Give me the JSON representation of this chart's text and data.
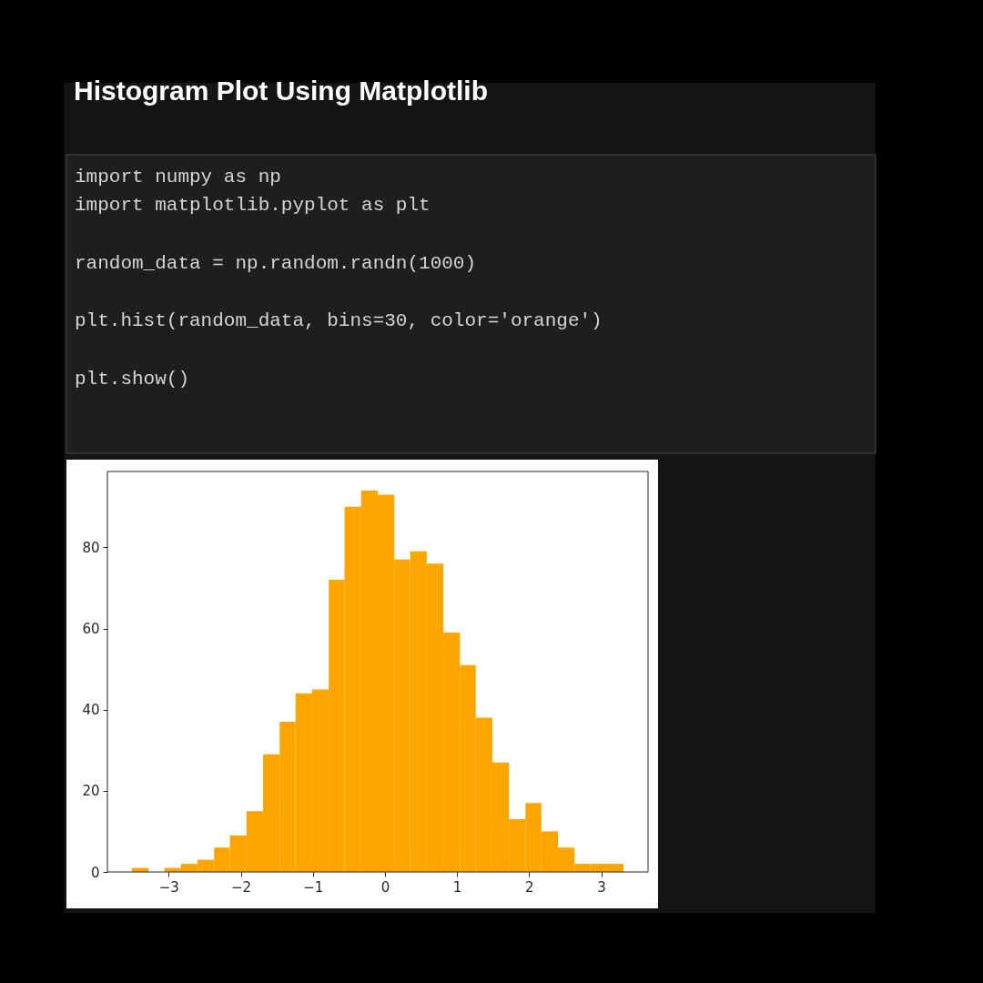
{
  "chart_data": {
    "type": "histogram",
    "title": "Histogram Plot Using Matplotlib",
    "annotations": [
      "import numpy as np",
      "import matplotlib.pyplot as plt",
      "random_data = np.random.randn(1000)",
      "plt.hist(random_data, bins=30, color='orange')",
      "plt.show()"
    ],
    "bins": [
      -3.51,
      -3.28,
      -3.06,
      -2.83,
      -2.6,
      -2.37,
      -2.15,
      -1.92,
      -1.69,
      -1.46,
      -1.24,
      -1.01,
      -0.78,
      -0.56,
      -0.33,
      -0.1,
      0.13,
      0.35,
      0.58,
      0.81,
      1.04,
      1.26,
      1.49,
      1.72,
      1.95,
      2.17,
      2.4,
      2.63,
      2.85,
      3.08,
      3.31
    ],
    "values": [
      1,
      0,
      1,
      2,
      3,
      6,
      9,
      15,
      29,
      37,
      44,
      45,
      72,
      90,
      94,
      93,
      77,
      79,
      76,
      59,
      51,
      38,
      27,
      13,
      17,
      10,
      6,
      2,
      2,
      2
    ],
    "color": "#ffa500",
    "xlim": [
      -3.85,
      3.65
    ],
    "ylim": [
      0,
      98.7
    ],
    "xticks": [
      {
        "value": -3,
        "label": "−3"
      },
      {
        "value": -2,
        "label": "−2"
      },
      {
        "value": -1,
        "label": "−1"
      },
      0,
      1,
      2,
      3
    ],
    "yticks": [
      0,
      20,
      40,
      60,
      80
    ]
  }
}
